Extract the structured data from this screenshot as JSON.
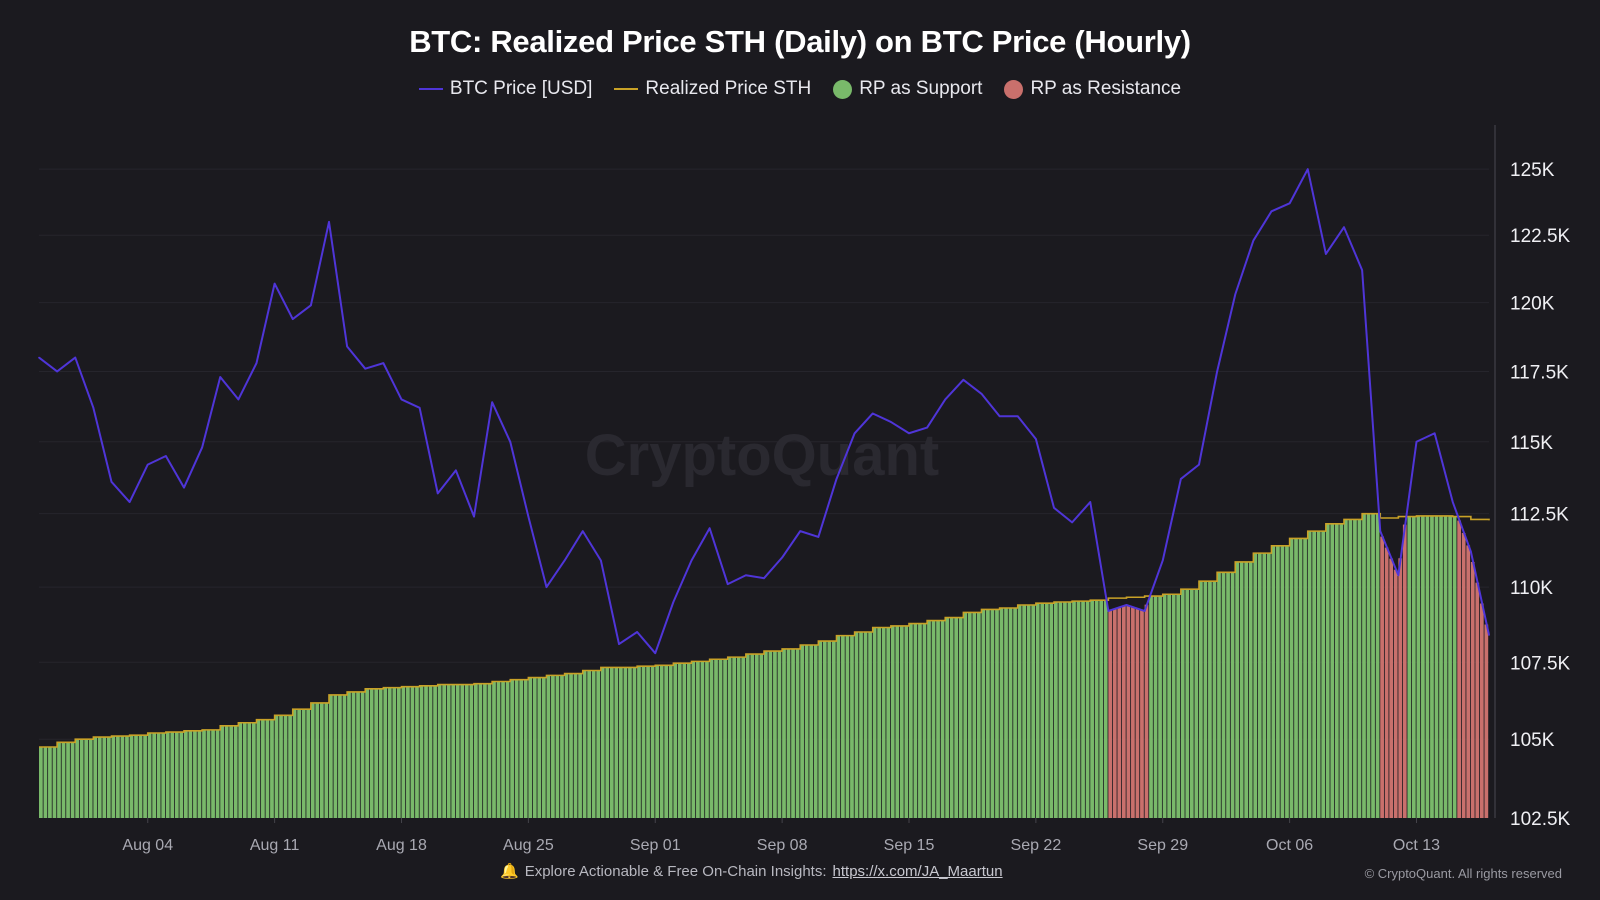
{
  "chart_data": {
    "type": "line+bar",
    "title": "BTC: Realized Price STH (Daily) on BTC Price (Hourly)",
    "legend": [
      {
        "name": "BTC Price [USD]",
        "kind": "line",
        "color": "#4f35d8"
      },
      {
        "name": "Realized Price STH",
        "kind": "line",
        "color": "#c9a227"
      },
      {
        "name": "RP as Support",
        "kind": "bar",
        "color": "#79b96a"
      },
      {
        "name": "RP as Resistance",
        "kind": "bar",
        "color": "#c9706c"
      }
    ],
    "legend_position": "top",
    "y_scale": "log",
    "ylim": [
      102500,
      126700
    ],
    "y_ticks": [
      {
        "value": 102500,
        "label": "102.5K"
      },
      {
        "value": 105000,
        "label": "105K"
      },
      {
        "value": 107500,
        "label": "107.5K"
      },
      {
        "value": 110000,
        "label": "110K"
      },
      {
        "value": 112500,
        "label": "112.5K"
      },
      {
        "value": 115000,
        "label": "115K"
      },
      {
        "value": 117500,
        "label": "117.5K"
      },
      {
        "value": 120000,
        "label": "120K"
      },
      {
        "value": 122500,
        "label": "122.5K"
      },
      {
        "value": 125000,
        "label": "125K"
      }
    ],
    "x_ticks": [
      "Aug 04",
      "Aug 11",
      "Aug 18",
      "Aug 25",
      "Sep 01",
      "Sep 08",
      "Sep 15",
      "Sep 22",
      "Sep 29",
      "Oct 06",
      "Oct 13"
    ],
    "xlim": [
      "Jul 29",
      "Oct 17"
    ],
    "grid": true,
    "x": [
      "Jul 29",
      "Jul 30",
      "Jul 31",
      "Aug 01",
      "Aug 02",
      "Aug 03",
      "Aug 04",
      "Aug 05",
      "Aug 06",
      "Aug 07",
      "Aug 08",
      "Aug 09",
      "Aug 10",
      "Aug 11",
      "Aug 12",
      "Aug 13",
      "Aug 14",
      "Aug 15",
      "Aug 16",
      "Aug 17",
      "Aug 18",
      "Aug 19",
      "Aug 20",
      "Aug 21",
      "Aug 22",
      "Aug 23",
      "Aug 24",
      "Aug 25",
      "Aug 26",
      "Aug 27",
      "Aug 28",
      "Aug 29",
      "Aug 30",
      "Aug 31",
      "Sep 01",
      "Sep 02",
      "Sep 03",
      "Sep 04",
      "Sep 05",
      "Sep 06",
      "Sep 07",
      "Sep 08",
      "Sep 09",
      "Sep 10",
      "Sep 11",
      "Sep 12",
      "Sep 13",
      "Sep 14",
      "Sep 15",
      "Sep 16",
      "Sep 17",
      "Sep 18",
      "Sep 19",
      "Sep 20",
      "Sep 21",
      "Sep 22",
      "Sep 23",
      "Sep 24",
      "Sep 25",
      "Sep 26",
      "Sep 27",
      "Sep 28",
      "Sep 29",
      "Sep 30",
      "Oct 01",
      "Oct 02",
      "Oct 03",
      "Oct 04",
      "Oct 05",
      "Oct 06",
      "Oct 07",
      "Oct 08",
      "Oct 09",
      "Oct 10",
      "Oct 11",
      "Oct 12",
      "Oct 13",
      "Oct 14",
      "Oct 15",
      "Oct 16",
      "Oct 17"
    ],
    "series": [
      {
        "name": "BTC Price [USD]",
        "values": [
          118000,
          117500,
          118000,
          116200,
          113600,
          112900,
          114200,
          114500,
          113400,
          114800,
          117300,
          116500,
          117800,
          120700,
          119400,
          119900,
          123000,
          118400,
          117600,
          117800,
          116500,
          116200,
          113200,
          114000,
          112400,
          116400,
          115000,
          112400,
          110000,
          110900,
          111900,
          110900,
          108100,
          108500,
          107800,
          109500,
          110900,
          112000,
          110100,
          110400,
          110300,
          111000,
          111900,
          111700,
          113700,
          115300,
          116000,
          115700,
          115300,
          115500,
          116500,
          117200,
          116700,
          115900,
          115900,
          115100,
          112700,
          112200,
          112900,
          109200,
          109400,
          109200,
          110900,
          113700,
          114200,
          117500,
          120300,
          122300,
          123400,
          123700,
          125000,
          121800,
          122800,
          121200,
          111900,
          110400,
          115000,
          115300,
          112900,
          111200,
          108400
        ]
      },
      {
        "name": "Realized Price STH",
        "values": [
          104750,
          104900,
          105000,
          105070,
          105100,
          105130,
          105200,
          105230,
          105270,
          105300,
          105430,
          105530,
          105630,
          105770,
          105970,
          106170,
          106430,
          106530,
          106630,
          106670,
          106700,
          106730,
          106770,
          106770,
          106800,
          106870,
          106930,
          107000,
          107070,
          107130,
          107230,
          107330,
          107330,
          107370,
          107400,
          107470,
          107530,
          107600,
          107670,
          107770,
          107870,
          107940,
          108070,
          108200,
          108380,
          108500,
          108650,
          108700,
          108780,
          108880,
          108980,
          109150,
          109250,
          109300,
          109400,
          109460,
          109500,
          109530,
          109560,
          109630,
          109660,
          109700,
          109760,
          109930,
          110200,
          110500,
          110850,
          111150,
          111400,
          111650,
          111900,
          112150,
          112300,
          112500,
          112350,
          112400,
          112420,
          112420,
          112400,
          112300,
          112270
        ]
      }
    ],
    "watermark": "CryptoQuant"
  },
  "footer": {
    "bell_icon": "bell-icon",
    "text": "Explore Actionable & Free On-Chain Insights:",
    "link": "https://x.com/JA_Maartun",
    "copyright": "© CryptoQuant. All rights reserved"
  }
}
